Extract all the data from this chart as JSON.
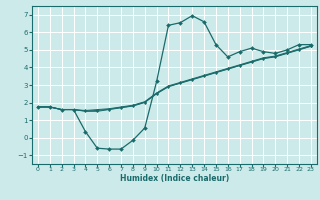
{
  "xlabel": "Humidex (Indice chaleur)",
  "bg_color": "#cdeaea",
  "grid_color": "#ffffff",
  "line_color": "#1a6b6b",
  "xlim": [
    -0.5,
    23.5
  ],
  "ylim": [
    -1.5,
    7.5
  ],
  "yticks": [
    -1,
    0,
    1,
    2,
    3,
    4,
    5,
    6,
    7
  ],
  "xticks": [
    0,
    1,
    2,
    3,
    4,
    5,
    6,
    7,
    8,
    9,
    10,
    11,
    12,
    13,
    14,
    15,
    16,
    17,
    18,
    19,
    20,
    21,
    22,
    23
  ],
  "series": {
    "line1": {
      "x": [
        0,
        1,
        2,
        3,
        4,
        5,
        6,
        7,
        8,
        9,
        10,
        11,
        12,
        13,
        14,
        15,
        16,
        17,
        18,
        19,
        20,
        21,
        22,
        23
      ],
      "y": [
        1.75,
        1.75,
        1.6,
        1.6,
        0.35,
        -0.6,
        -0.65,
        -0.65,
        -0.15,
        0.55,
        3.2,
        6.4,
        6.55,
        6.95,
        6.6,
        5.3,
        4.6,
        4.9,
        5.1,
        4.9,
        4.8,
        5.0,
        5.3,
        5.3
      ]
    },
    "line2": {
      "x": [
        0,
        1,
        2,
        3,
        4,
        5,
        6,
        7,
        8,
        9,
        10,
        11,
        12,
        13,
        14,
        15,
        16,
        17,
        18,
        19,
        20,
        21,
        22,
        23
      ],
      "y": [
        1.75,
        1.75,
        1.6,
        1.6,
        1.55,
        1.6,
        1.65,
        1.75,
        1.85,
        2.05,
        2.55,
        2.95,
        3.15,
        3.35,
        3.55,
        3.75,
        3.95,
        4.15,
        4.35,
        4.55,
        4.65,
        4.85,
        5.05,
        5.25
      ]
    },
    "line3": {
      "x": [
        0,
        1,
        2,
        3,
        4,
        5,
        6,
        7,
        8,
        9,
        10,
        11,
        12,
        13,
        14,
        15,
        16,
        17,
        18,
        19,
        20,
        21,
        22,
        23
      ],
      "y": [
        1.75,
        1.75,
        1.6,
        1.6,
        1.5,
        1.5,
        1.6,
        1.7,
        1.8,
        2.0,
        2.5,
        2.9,
        3.1,
        3.3,
        3.5,
        3.7,
        3.9,
        4.1,
        4.3,
        4.5,
        4.6,
        4.8,
        5.0,
        5.2
      ]
    },
    "line4": {
      "x": [
        0,
        1,
        2,
        3,
        4,
        5,
        6,
        7,
        8,
        9,
        10,
        11,
        12,
        13,
        14,
        15,
        16,
        17,
        18,
        19,
        20,
        21,
        22,
        23
      ],
      "y": [
        1.75,
        1.75,
        1.6,
        1.6,
        1.52,
        1.55,
        1.62,
        1.72,
        1.82,
        2.02,
        2.52,
        2.92,
        3.12,
        3.32,
        3.52,
        3.72,
        3.92,
        4.12,
        4.32,
        4.52,
        4.62,
        4.82,
        5.02,
        5.22
      ]
    }
  }
}
